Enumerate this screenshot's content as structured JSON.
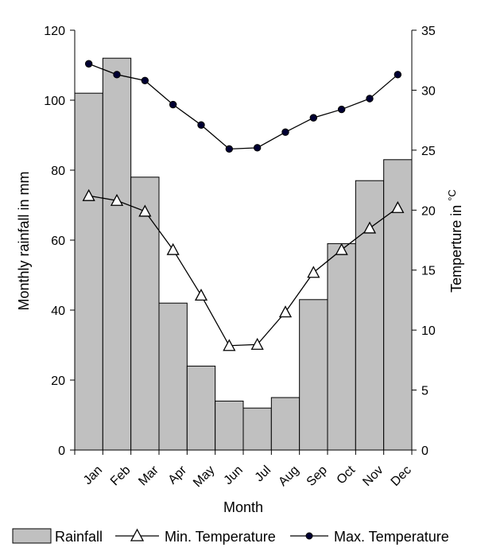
{
  "chart_data": {
    "type": "bar+line",
    "categories": [
      "Jan",
      "Feb",
      "Mar",
      "Apr",
      "May",
      "Jun",
      "Jul",
      "Aug",
      "Sep",
      "Oct",
      "Nov",
      "Dec"
    ],
    "xlabel": "Month",
    "ylabel_left": "Monthly rainfall in mm",
    "ylabel_right_main": "Temperture in ",
    "ylabel_right_unit": "°C",
    "ylim_left": [
      0,
      120
    ],
    "yticks_left": [
      "0",
      "20",
      "40",
      "60",
      "80",
      "100",
      "120"
    ],
    "ylim_right": [
      0,
      35
    ],
    "yticks_right": [
      "0",
      "5",
      "10",
      "15",
      "20",
      "25",
      "30",
      "35"
    ],
    "grid": false,
    "legend_position": "bottom",
    "series": [
      {
        "name": "Rainfall",
        "kind": "bar",
        "axis": "left",
        "color": "#c0c0c0",
        "values": [
          102,
          112,
          78,
          42,
          24,
          14,
          12,
          15,
          43,
          59,
          77,
          83
        ]
      },
      {
        "name": "Min. Temperature",
        "kind": "line",
        "axis": "right",
        "marker": "triangle-open",
        "color": "#000000",
        "values": [
          21.2,
          20.8,
          19.9,
          16.7,
          12.9,
          8.7,
          8.8,
          11.5,
          14.8,
          16.7,
          18.5,
          20.2
        ]
      },
      {
        "name": "Max. Temperature",
        "kind": "line",
        "axis": "right",
        "marker": "circle-filled",
        "color": "#000000",
        "marker_color": "#000033",
        "values": [
          32.2,
          31.3,
          30.8,
          28.8,
          27.1,
          25.1,
          25.2,
          26.5,
          27.7,
          28.4,
          29.3,
          31.3
        ]
      }
    ]
  }
}
